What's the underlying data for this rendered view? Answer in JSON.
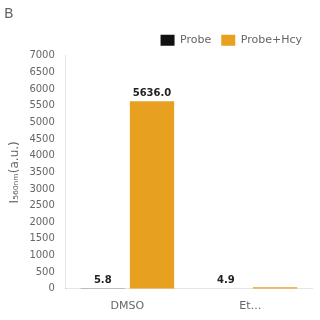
{
  "chart_data": {
    "type": "bar",
    "title": "B",
    "ylabel": "I₅₆₀ₙₘ(a.u.)",
    "categories": [
      "DMSO",
      "Et…"
    ],
    "series": [
      {
        "name": "Probe",
        "color": "#111111",
        "values": [
          5.8,
          4.9
        ]
      },
      {
        "name": "Probe+Hcy",
        "color": "#E8A020",
        "values": [
          5636.0,
          50
        ],
        "value_labels": [
          "5636.0",
          null
        ]
      }
    ],
    "ylim": [
      0,
      7000
    ],
    "yticks": [
      0,
      500,
      1000,
      1500,
      2000,
      2500,
      3000,
      3500,
      4000,
      4500,
      5000,
      5500,
      6000,
      6500,
      7000
    ],
    "grid": false,
    "legend": "upper right",
    "data_labels": true
  }
}
